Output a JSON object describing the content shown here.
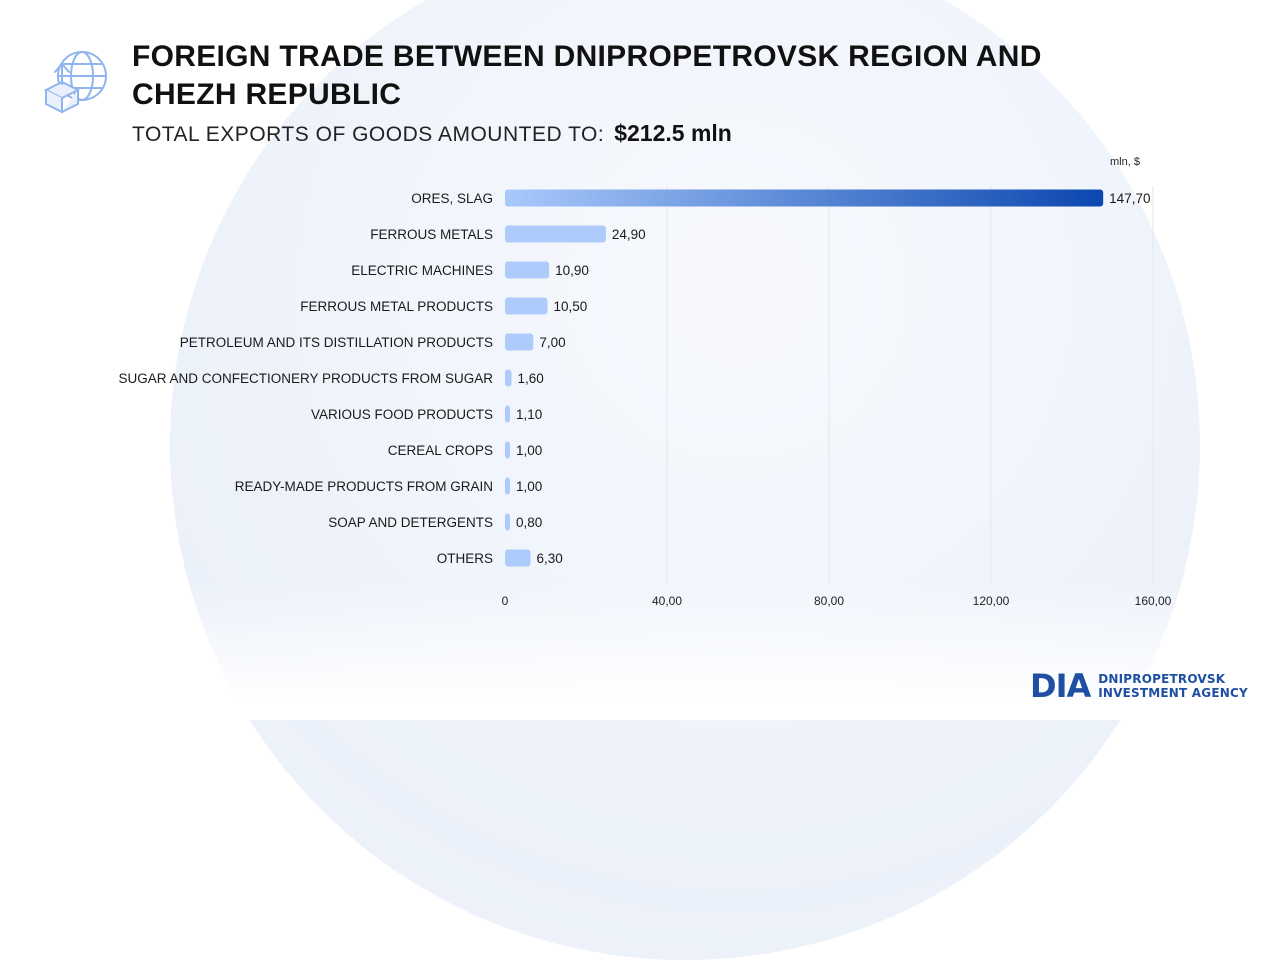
{
  "header": {
    "icon": "export-globe-icon",
    "title": "FOREIGN TRADE BETWEEN DNIPROPETROVSK REGION AND CHEZH REPUBLIC",
    "subtitle_label": "TOTAL EXPORTS OF GOODS AMOUNTED TO:",
    "subtitle_value": "$212.5 mln"
  },
  "colors": {
    "bar_light": "#a9c9fb",
    "bar_dark": "#0b47b0",
    "grid": "#e3e7ee",
    "logo": "#1f4fa3"
  },
  "chart_data": {
    "type": "bar",
    "orientation": "horizontal",
    "unit_label": "mln, $",
    "categories": [
      "ORES, SLAG",
      "FERROUS METALS",
      "ELECTRIC MACHINES",
      "FERROUS METAL PRODUCTS",
      "PETROLEUM AND ITS DISTILLATION PRODUCTS",
      "SUGAR AND CONFECTIONERY PRODUCTS FROM SUGAR",
      "VARIOUS FOOD PRODUCTS",
      "CEREAL CROPS",
      "READY-MADE PRODUCTS FROM GRAIN",
      "SOAP AND DETERGENTS",
      "OTHERS"
    ],
    "values": [
      147.7,
      24.9,
      10.9,
      10.5,
      7.0,
      1.6,
      1.1,
      1.0,
      1.0,
      0.8,
      6.3
    ],
    "value_labels": [
      "147,70",
      "24,90",
      "10,90",
      "10,50",
      "7,00",
      "1,60",
      "1,10",
      "1,00",
      "1,00",
      "0,80",
      "6,30"
    ],
    "xlim": [
      0,
      160
    ],
    "ticks": [
      0,
      40,
      80,
      120,
      160
    ],
    "tick_labels": [
      "0",
      "40,00",
      "80,00",
      "120,00",
      "160,00"
    ],
    "grid": true
  },
  "logo": {
    "mark": "DIA",
    "line1": "DNIPROPETROVSK",
    "line2": "INVESTMENT AGENCY"
  }
}
